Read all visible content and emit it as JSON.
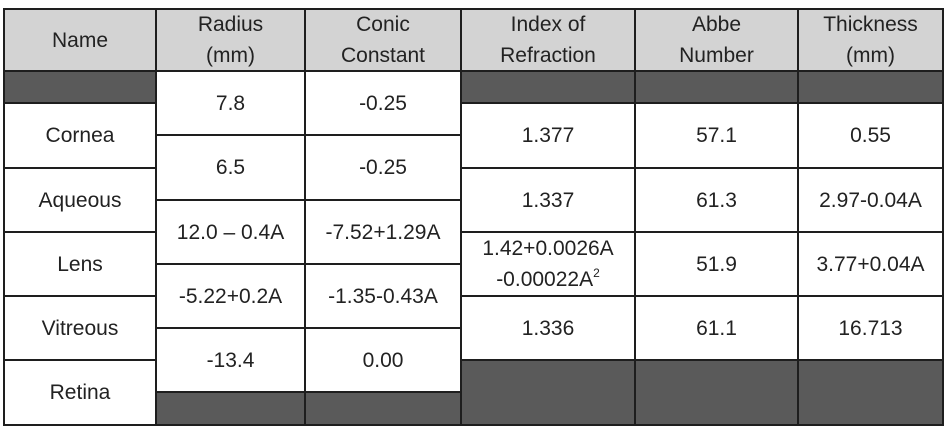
{
  "table": {
    "headers": {
      "name": "Name",
      "radius": [
        "Radius",
        "(mm)"
      ],
      "conic": [
        "Conic",
        "Constant"
      ],
      "index": [
        "Index of",
        "Refraction"
      ],
      "abbe": [
        "Abbe",
        "Number"
      ],
      "thickness": [
        "Thickness",
        "(mm)"
      ]
    },
    "surfaces": [
      {
        "radius": "7.8",
        "conic": "-0.25"
      },
      {
        "radius": "6.5",
        "conic": "-0.25"
      },
      {
        "radius": "12.0 – 0.4A",
        "conic": "-7.52+1.29A"
      },
      {
        "radius": "-5.22+0.2A",
        "conic": "-1.35-0.43A"
      },
      {
        "radius": "-13.4",
        "conic": "0.00"
      }
    ],
    "media": [
      {
        "name": "Cornea",
        "index": "1.377",
        "abbe": "57.1",
        "thickness": "0.55"
      },
      {
        "name": "Aqueous",
        "index": "1.337",
        "abbe": "61.3",
        "thickness": "2.97-0.04A"
      },
      {
        "name": "Lens",
        "index_line1": "1.42+0.0026A",
        "index_line2": "-0.00022A",
        "index_line2_sup": "2",
        "abbe": "51.9",
        "thickness": "3.77+0.04A"
      },
      {
        "name": "Vitreous",
        "index": "1.336",
        "abbe": "61.1",
        "thickness": "16.713"
      },
      {
        "name": "Retina"
      }
    ]
  },
  "colors": {
    "header_bg": "#d3d3d3",
    "filler_bg": "#5a5a5a",
    "border": "#1e1e1e"
  }
}
